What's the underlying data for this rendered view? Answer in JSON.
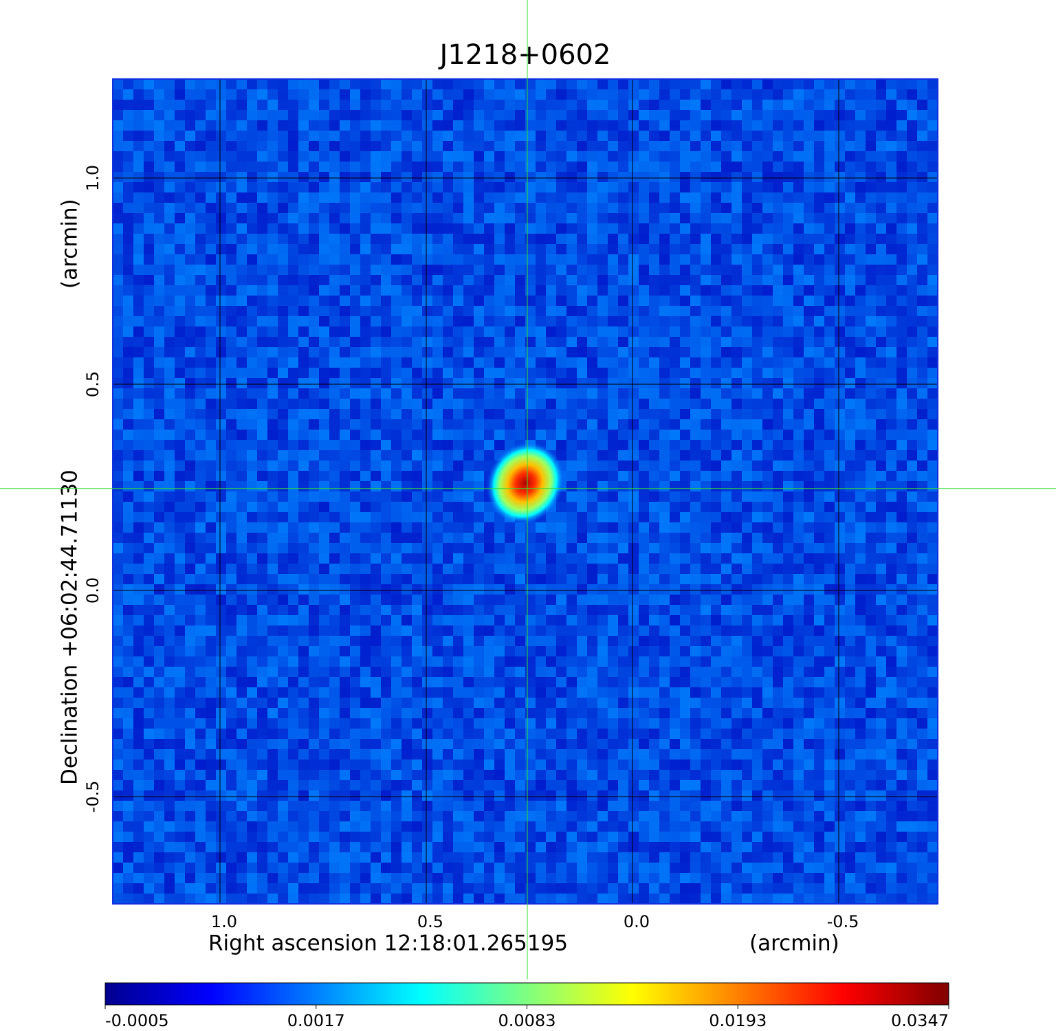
{
  "chart_data": {
    "type": "image",
    "title": "J1218+0602",
    "title_color": "#1a1adc",
    "x_label": "Right ascension  12:18:01.265195",
    "x_unit": "(arcmin)",
    "y_label": "Declination  +06:02:44.71130",
    "y_unit": "(arcmin)",
    "xlim": [
      1.26,
      -0.74
    ],
    "ylim": [
      -0.76,
      1.24
    ],
    "xticks": [
      {
        "value": 1,
        "label": "1.0"
      },
      0.5,
      {
        "value": 0,
        "label": "0.0"
      },
      -0.5
    ],
    "yticks": [
      {
        "value": 1,
        "label": "1.0"
      },
      0.5,
      {
        "value": 0,
        "label": "0.0"
      },
      -0.5
    ],
    "grid": true,
    "source": {
      "x": 0.26,
      "y": 0.26
    },
    "crosshair": {
      "x": 0.255,
      "y": 0.247,
      "color": "#33dd33"
    },
    "colorbar": {
      "ticks": [
        -0.0005,
        0.0017,
        0.0083,
        0.0193,
        0.0347
      ],
      "colormap": [
        "#00008f",
        "#0000ff",
        "#0080ff",
        "#00ffff",
        "#80ff80",
        "#ffff00",
        "#ff8000",
        "#ff0000",
        "#800000"
      ]
    }
  }
}
